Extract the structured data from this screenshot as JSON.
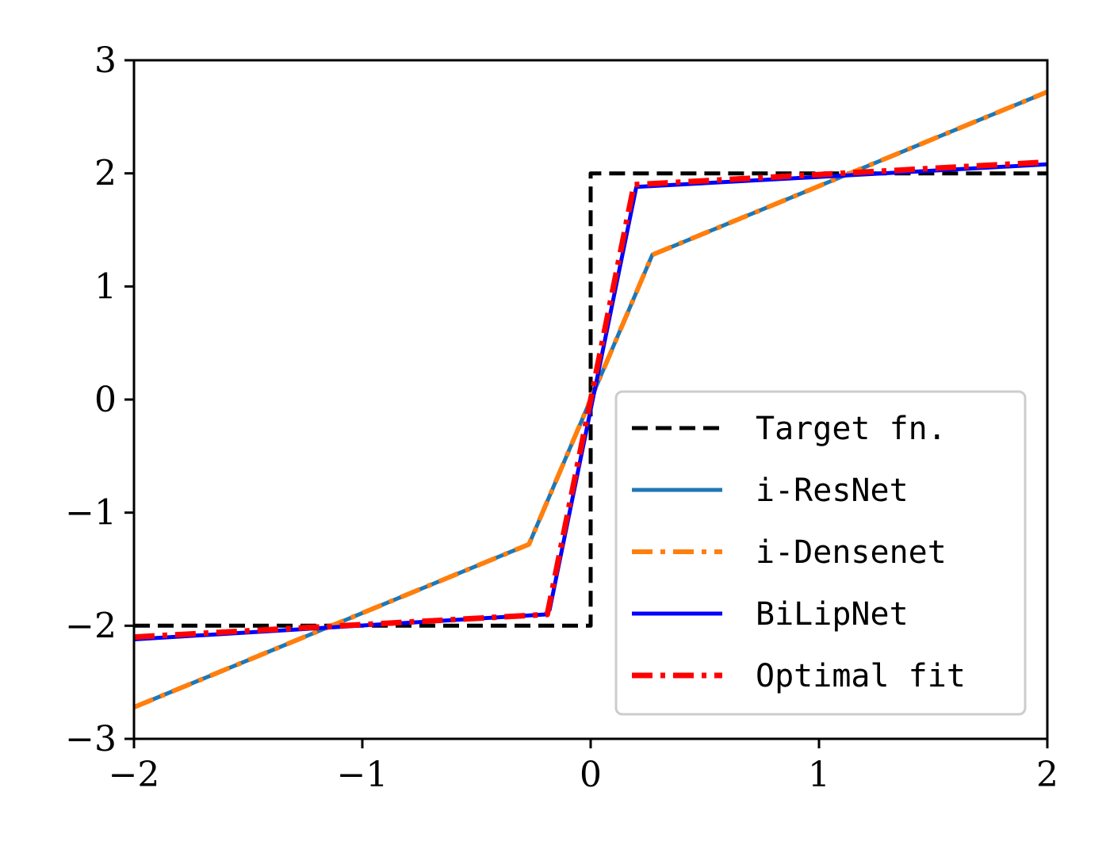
{
  "chart_data": {
    "type": "line",
    "title": "",
    "xlabel": "",
    "ylabel": "",
    "xlim": [
      -2,
      2
    ],
    "ylim": [
      -3,
      3
    ],
    "xticks": [
      -2,
      -1,
      0,
      1,
      2
    ],
    "yticks": [
      -3,
      -2,
      -1,
      0,
      1,
      2,
      3
    ],
    "xtick_labels": [
      "−2",
      "−1",
      "0",
      "1",
      "2"
    ],
    "ytick_labels": [
      "−3",
      "−2",
      "−1",
      "0",
      "1",
      "2",
      "3"
    ],
    "grid": false,
    "legend_position": "lower-right",
    "series": [
      {
        "name": "Target fn.",
        "color": "#000000",
        "style": "dashed",
        "x": [
          -2,
          0,
          0,
          2
        ],
        "y": [
          -2,
          -2,
          2,
          2
        ]
      },
      {
        "name": "i-ResNet",
        "color": "#1f77b4",
        "style": "solid",
        "x": [
          -2,
          -0.27,
          0.27,
          2
        ],
        "y": [
          -2.72,
          -1.28,
          1.28,
          2.72
        ]
      },
      {
        "name": "i-Densenet",
        "color": "#ff7f0e",
        "style": "dashdot",
        "x": [
          -2,
          -0.27,
          0.27,
          2
        ],
        "y": [
          -2.72,
          -1.28,
          1.28,
          2.72
        ]
      },
      {
        "name": "BiLipNet",
        "color": "#0000ff",
        "style": "solid",
        "x": [
          -2,
          -0.2,
          -0.18,
          0.2,
          2
        ],
        "y": [
          -2.12,
          -1.9,
          -1.86,
          1.88,
          2.08
        ]
      },
      {
        "name": "Optimal fit",
        "color": "#ff0000",
        "style": "dashdot",
        "x": [
          -2,
          -0.19,
          0.19,
          2
        ],
        "y": [
          -2.1,
          -1.9,
          1.9,
          2.1
        ]
      }
    ]
  }
}
